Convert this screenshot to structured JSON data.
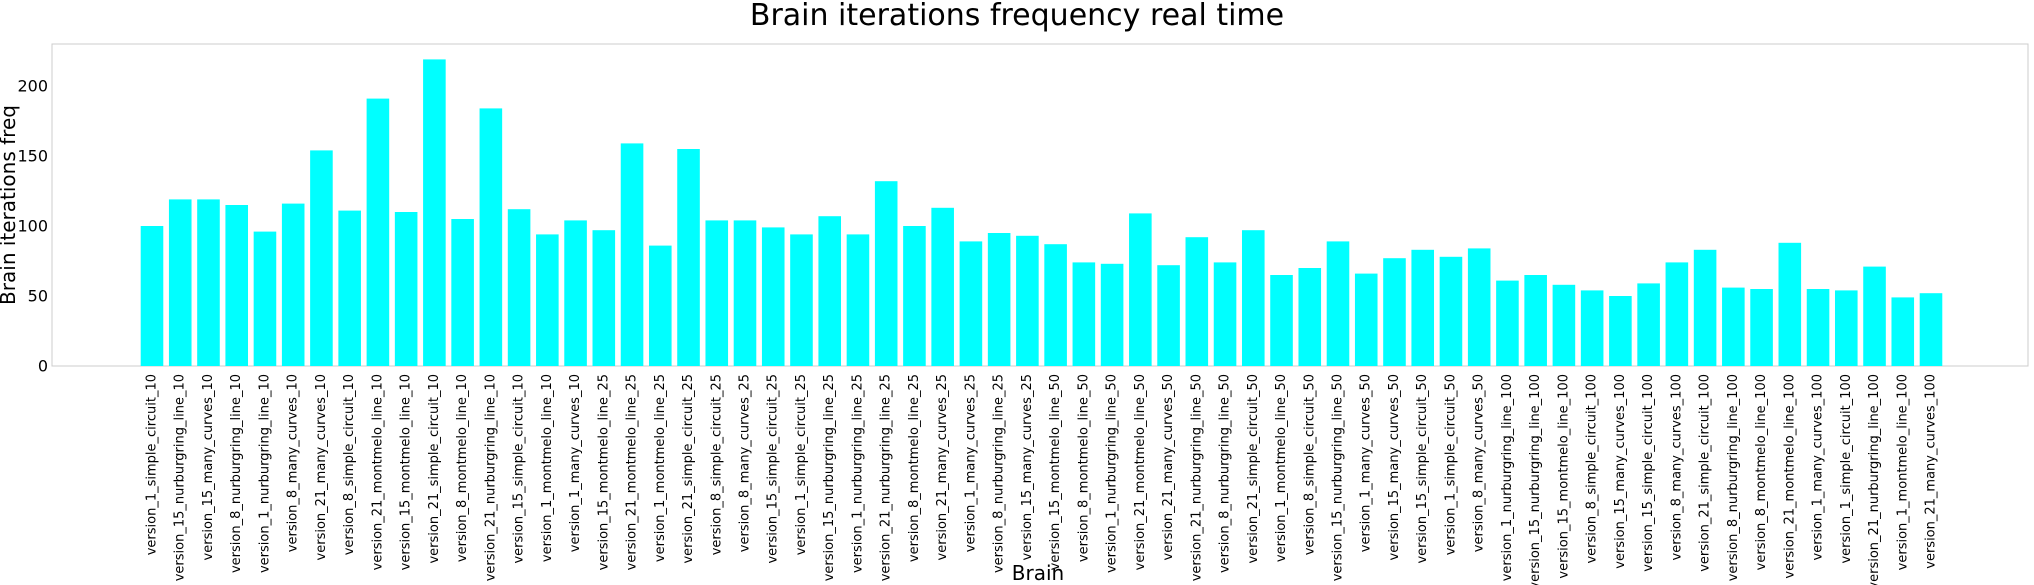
{
  "chart_data": {
    "type": "bar",
    "title": "Brain iterations frequency real time",
    "xlabel": "Brain",
    "ylabel": "Brain iterations freq",
    "ylim": [
      0,
      230
    ],
    "yticks": [
      0,
      50,
      100,
      150,
      200
    ],
    "bar_color": "#00ffff",
    "grid": false,
    "categories": [
      "version_1_simple_circuit_10",
      "version_15_nurburgring_line_10",
      "version_15_many_curves_10",
      "version_8_nurburgring_line_10",
      "version_1_nurburgring_line_10",
      "version_8_many_curves_10",
      "version_21_many_curves_10",
      "version_8_simple_circuit_10",
      "version_21_montmelo_line_10",
      "version_15_montmelo_line_10",
      "version_21_simple_circuit_10",
      "version_8_montmelo_line_10",
      "version_21_nurburgring_line_10",
      "version_15_simple_circuit_10",
      "version_1_montmelo_line_10",
      "version_1_many_curves_10",
      "version_15_montmelo_line_25",
      "version_21_montmelo_line_25",
      "version_1_montmelo_line_25",
      "version_21_simple_circuit_25",
      "version_8_simple_circuit_25",
      "version_8_many_curves_25",
      "version_15_simple_circuit_25",
      "version_1_simple_circuit_25",
      "version_15_nurburgring_line_25",
      "version_1_nurburgring_line_25",
      "version_21_nurburgring_line_25",
      "version_8_montmelo_line_25",
      "version_21_many_curves_25",
      "version_1_many_curves_25",
      "version_8_nurburgring_line_25",
      "version_15_many_curves_25",
      "version_15_montmelo_line_50",
      "version_8_montmelo_line_50",
      "version_1_nurburgring_line_50",
      "version_21_montmelo_line_50",
      "version_21_many_curves_50",
      "version_21_nurburgring_line_50",
      "version_8_nurburgring_line_50",
      "version_21_simple_circuit_50",
      "version_1_montmelo_line_50",
      "version_8_simple_circuit_50",
      "version_15_nurburgring_line_50",
      "version_1_many_curves_50",
      "version_15_many_curves_50",
      "version_15_simple_circuit_50",
      "version_1_simple_circuit_50",
      "version_8_many_curves_50",
      "version_1_nurburgring_line_100",
      "version_15_nurburgring_line_100",
      "version_15_montmelo_line_100",
      "version_8_simple_circuit_100",
      "version_15_many_curves_100",
      "version_15_simple_circuit_100",
      "version_8_many_curves_100",
      "version_21_simple_circuit_100",
      "version_8_nurburgring_line_100",
      "version_8_montmelo_line_100",
      "version_21_montmelo_line_100",
      "version_1_many_curves_100",
      "version_1_simple_circuit_100",
      "version_21_nurburgring_line_100",
      "version_1_montmelo_line_100",
      "version_21_many_curves_100"
    ],
    "values": [
      100,
      119,
      119,
      115,
      96,
      116,
      154,
      111,
      191,
      110,
      219,
      105,
      184,
      112,
      94,
      104,
      97,
      159,
      86,
      155,
      104,
      104,
      99,
      94,
      107,
      94,
      132,
      100,
      113,
      89,
      95,
      93,
      87,
      74,
      73,
      109,
      72,
      92,
      74,
      97,
      65,
      70,
      89,
      66,
      77,
      83,
      78,
      84,
      61,
      65,
      58,
      54,
      50,
      59,
      74,
      83,
      56,
      55,
      88,
      55,
      54,
      71,
      49,
      52
    ]
  }
}
